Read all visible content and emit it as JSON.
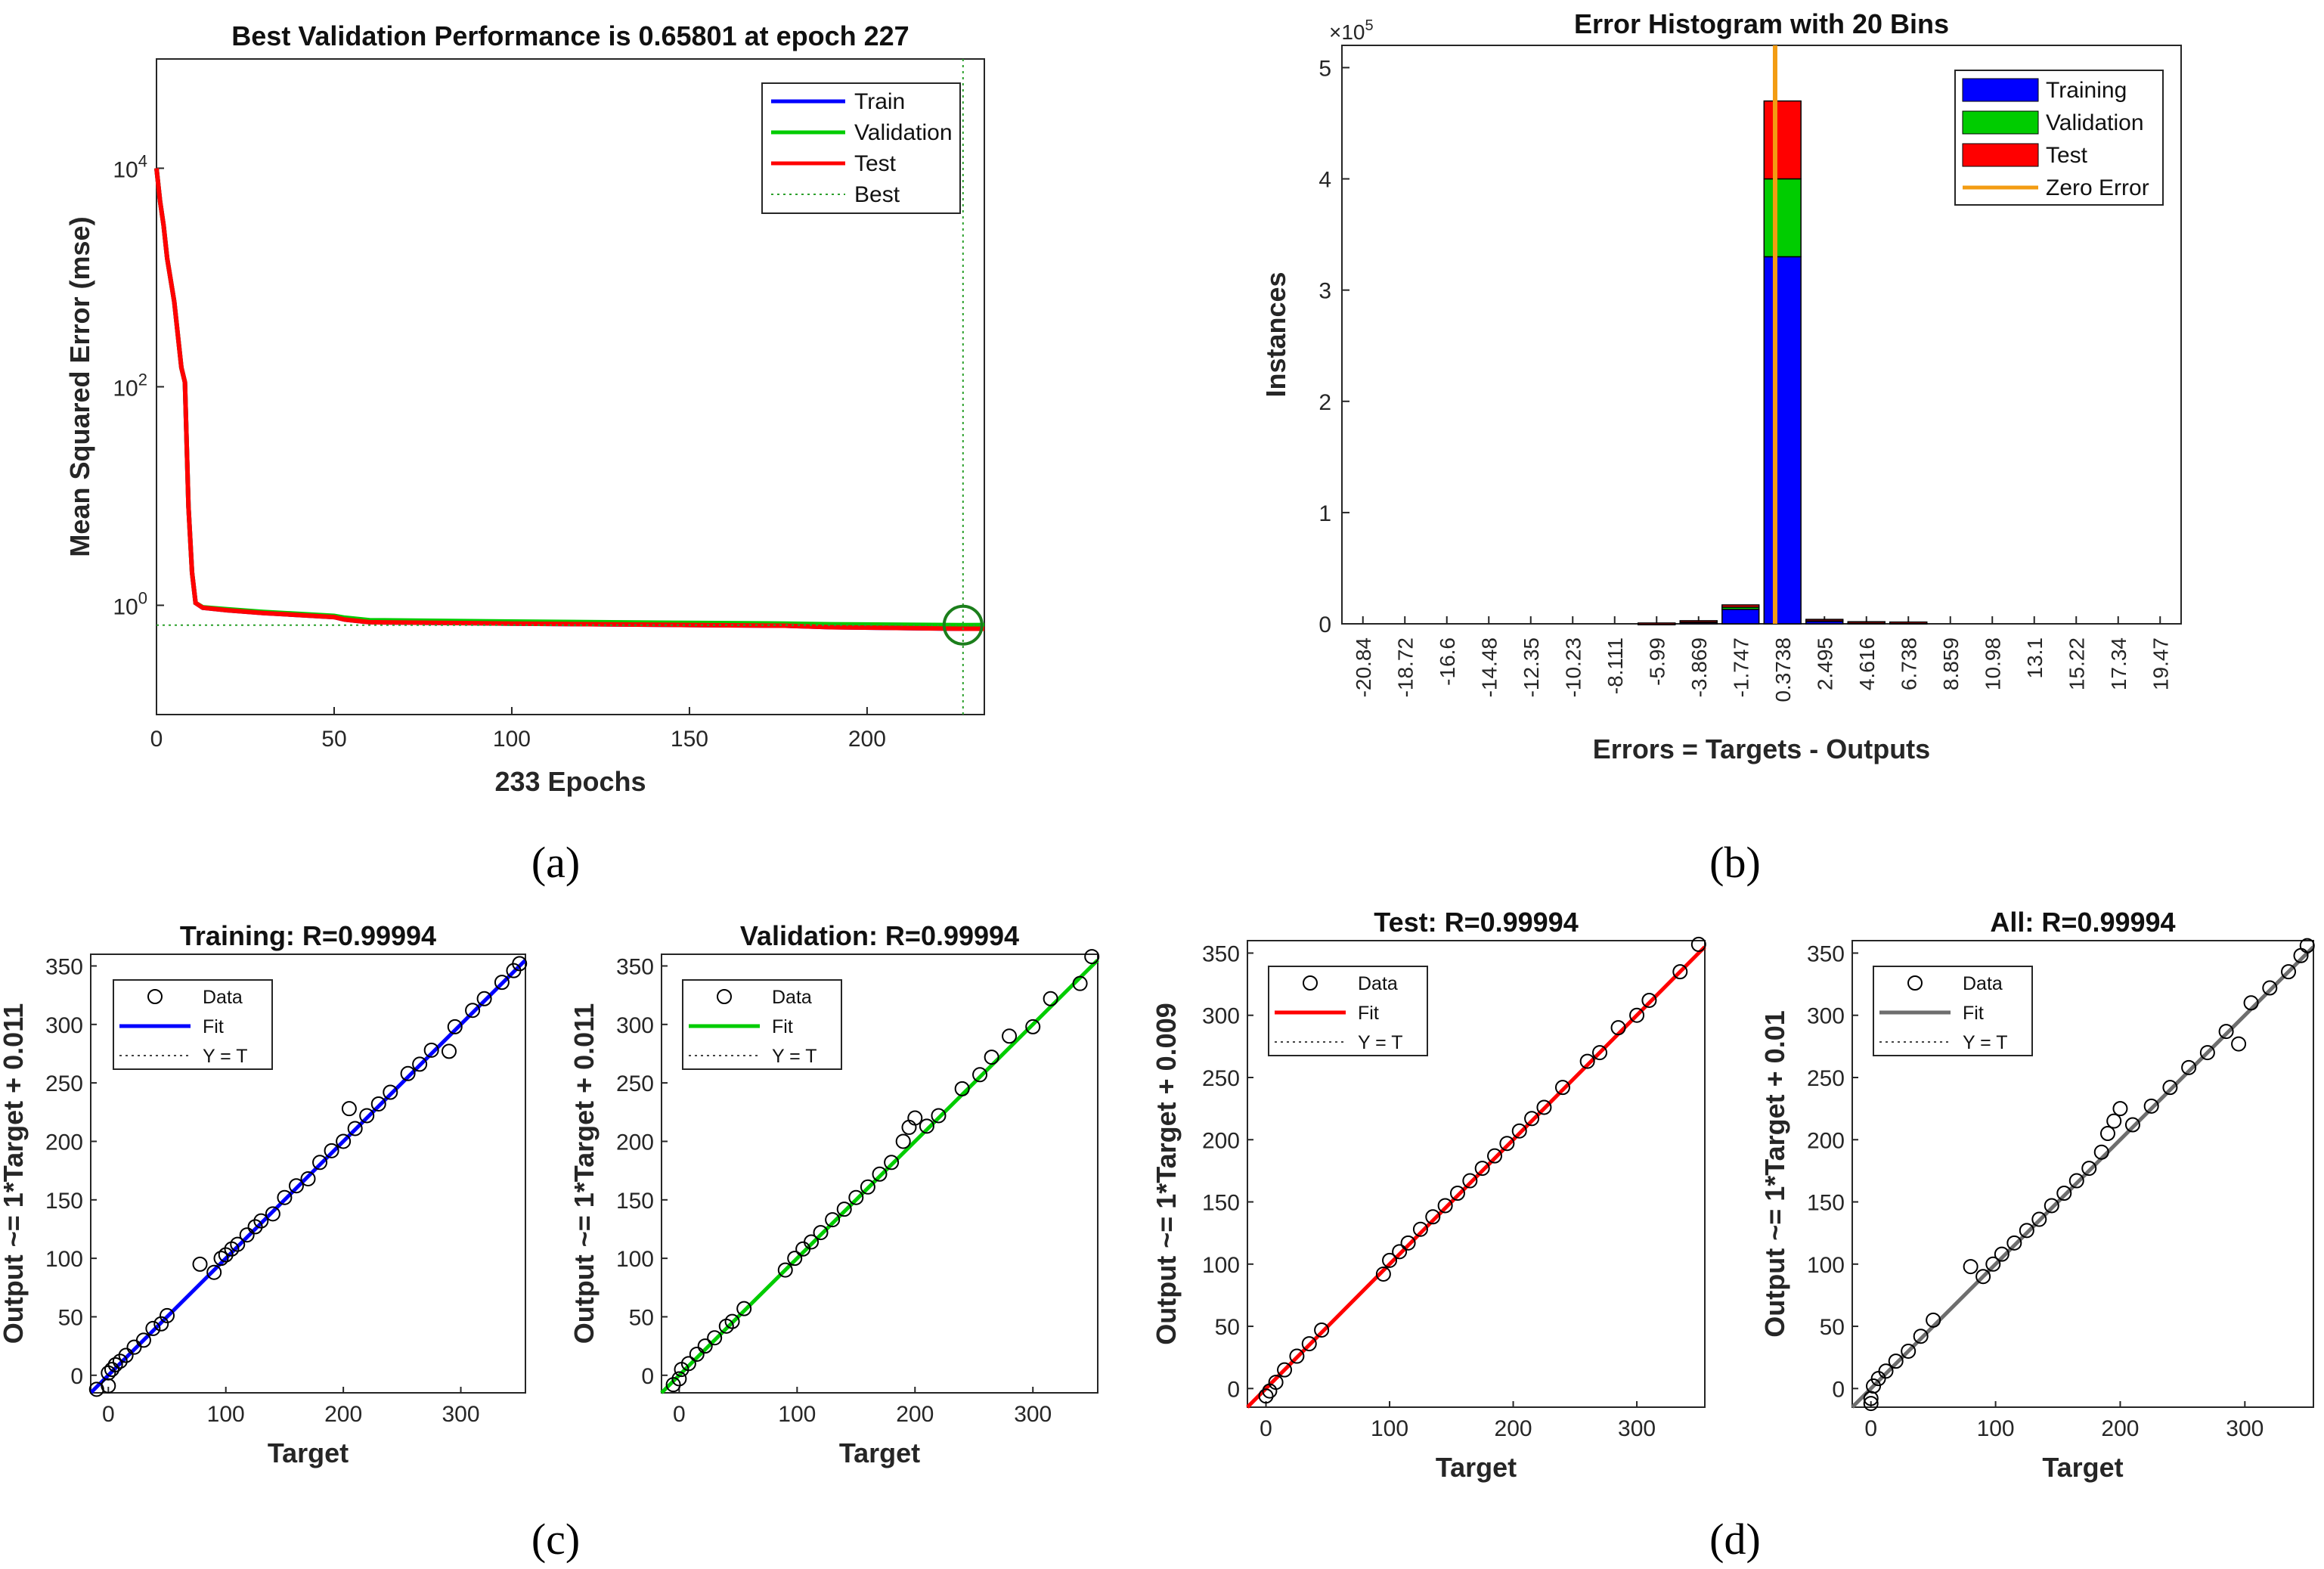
{
  "panel_labels": [
    "(a)",
    "(b)",
    "(c)",
    "(d)"
  ],
  "colors": {
    "train": "#0000ff",
    "validation": "#00cc00",
    "test": "#ff0000",
    "all": "#6e6e6e",
    "zero_error": "#f39c12",
    "best": "#2ca02c",
    "axis": "#262626"
  },
  "chart_data": [
    {
      "id": "perf",
      "type": "line",
      "title": "Best Validation Performance is 0.65801 at epoch 227",
      "xlabel": "233 Epochs",
      "ylabel": "Mean Squared Error  (mse)",
      "yscale": "log",
      "xlim": [
        0,
        233
      ],
      "ylim": [
        0.1,
        100000
      ],
      "xticks": [
        0,
        50,
        100,
        150,
        200
      ],
      "yticks": [
        {
          "v": 1,
          "mant": "10",
          "exp": "0"
        },
        {
          "v": 100,
          "mant": "10",
          "exp": "2"
        },
        {
          "v": 10000,
          "mant": "10",
          "exp": "4"
        }
      ],
      "legend": [
        "Train",
        "Validation",
        "Test",
        "Best"
      ],
      "best": {
        "epoch": 227,
        "value": 0.65801
      },
      "series": [
        {
          "name": "Train",
          "points": [
            [
              0,
              10000
            ],
            [
              1,
              5000
            ],
            [
              2,
              3000
            ],
            [
              3,
              1500
            ],
            [
              5,
              600
            ],
            [
              7,
              150
            ],
            [
              8,
              110
            ],
            [
              9,
              8
            ],
            [
              10,
              2
            ],
            [
              11,
              1.05
            ],
            [
              13,
              0.95
            ],
            [
              20,
              0.9
            ],
            [
              30,
              0.85
            ],
            [
              50,
              0.78
            ],
            [
              53,
              0.74
            ],
            [
              60,
              0.7
            ],
            [
              100,
              0.68
            ],
            [
              150,
              0.66
            ],
            [
              177,
              0.65
            ],
            [
              190,
              0.63
            ],
            [
              227,
              0.61
            ],
            [
              233,
              0.61
            ]
          ]
        },
        {
          "name": "Validation",
          "points": [
            [
              0,
              10000
            ],
            [
              1,
              5000
            ],
            [
              2,
              3000
            ],
            [
              3,
              1500
            ],
            [
              5,
              600
            ],
            [
              7,
              150
            ],
            [
              8,
              110
            ],
            [
              9,
              8
            ],
            [
              10,
              2
            ],
            [
              11,
              1.05
            ],
            [
              13,
              0.96
            ],
            [
              20,
              0.92
            ],
            [
              30,
              0.87
            ],
            [
              50,
              0.8
            ],
            [
              53,
              0.77
            ],
            [
              60,
              0.73
            ],
            [
              100,
              0.71
            ],
            [
              150,
              0.69
            ],
            [
              177,
              0.68
            ],
            [
              190,
              0.67
            ],
            [
              227,
              0.65801
            ],
            [
              233,
              0.66
            ]
          ]
        },
        {
          "name": "Test",
          "points": [
            [
              0,
              10000
            ],
            [
              1,
              5000
            ],
            [
              2,
              3000
            ],
            [
              3,
              1500
            ],
            [
              5,
              600
            ],
            [
              7,
              150
            ],
            [
              8,
              110
            ],
            [
              9,
              8
            ],
            [
              10,
              2
            ],
            [
              11,
              1.05
            ],
            [
              13,
              0.95
            ],
            [
              20,
              0.9
            ],
            [
              30,
              0.85
            ],
            [
              50,
              0.78
            ],
            [
              53,
              0.74
            ],
            [
              60,
              0.7
            ],
            [
              100,
              0.68
            ],
            [
              150,
              0.66
            ],
            [
              177,
              0.65
            ],
            [
              190,
              0.63
            ],
            [
              227,
              0.61
            ],
            [
              233,
              0.61
            ]
          ]
        }
      ]
    },
    {
      "id": "hist",
      "type": "bar",
      "title": "Error Histogram with 20 Bins",
      "xlabel": "Errors = Targets - Outputs",
      "ylabel": "Instances",
      "y_multiplier": "×10",
      "y_multiplier_exp": "5",
      "ylim": [
        0,
        5.2
      ],
      "yticks": [
        0,
        1,
        2,
        3,
        4,
        5
      ],
      "categories": [
        "-20.84",
        "-18.72",
        "-16.6",
        "-14.48",
        "-12.35",
        "-10.23",
        "-8.111",
        "-5.99",
        "-3.869",
        "-1.747",
        "0.3738",
        "2.495",
        "4.616",
        "6.738",
        "8.859",
        "10.98",
        "13.1",
        "15.22",
        "17.34",
        "19.47"
      ],
      "series": [
        {
          "name": "Training",
          "values": [
            0,
            0,
            0,
            0,
            0,
            0,
            0,
            0.005,
            0.02,
            0.13,
            3.3,
            0.03,
            0.015,
            0.012,
            0,
            0,
            0,
            0,
            0,
            0
          ]
        },
        {
          "name": "Validation",
          "values": [
            0,
            0,
            0,
            0,
            0,
            0,
            0,
            0.001,
            0.004,
            0.02,
            0.7,
            0.005,
            0.002,
            0.002,
            0,
            0,
            0,
            0,
            0,
            0
          ]
        },
        {
          "name": "Test",
          "values": [
            0,
            0,
            0,
            0,
            0,
            0,
            0,
            0.001,
            0.004,
            0.02,
            0.7,
            0.005,
            0.002,
            0.002,
            0,
            0,
            0,
            0,
            0,
            0
          ]
        }
      ],
      "zero_error": 0,
      "legend": [
        "Training",
        "Validation",
        "Test",
        "Zero Error"
      ]
    },
    {
      "id": "r_train",
      "type": "scatter",
      "title": "Training: R=0.99994",
      "xlabel": "Target",
      "ylabel": "Output ~= 1*Target + 0.011",
      "xlim": [
        -15,
        355
      ],
      "ylim": [
        -15,
        360
      ],
      "xticks": [
        0,
        100,
        200,
        300
      ],
      "yticks": [
        0,
        50,
        100,
        150,
        200,
        250,
        300,
        350
      ],
      "fit": {
        "slope": 1,
        "intercept": 0.011
      },
      "fit_color_key": "train",
      "legend": [
        "Data",
        "Fit",
        "Y = T"
      ]
    },
    {
      "id": "r_val",
      "type": "scatter",
      "title": "Validation: R=0.99994",
      "xlabel": "Target",
      "ylabel": "Output ~= 1*Target + 0.011",
      "xlim": [
        -15,
        355
      ],
      "ylim": [
        -15,
        360
      ],
      "xticks": [
        0,
        100,
        200,
        300
      ],
      "yticks": [
        0,
        50,
        100,
        150,
        200,
        250,
        300,
        350
      ],
      "fit": {
        "slope": 1,
        "intercept": 0.011
      },
      "fit_color_key": "validation",
      "legend": [
        "Data",
        "Fit",
        "Y = T"
      ]
    },
    {
      "id": "r_test",
      "type": "scatter",
      "title": "Test: R=0.99994",
      "xlabel": "Target",
      "ylabel": "Output ~= 1*Target + 0.009",
      "xlim": [
        -15,
        355
      ],
      "ylim": [
        -15,
        360
      ],
      "xticks": [
        0,
        100,
        200,
        300
      ],
      "yticks": [
        0,
        50,
        100,
        150,
        200,
        250,
        300,
        350
      ],
      "fit": {
        "slope": 1,
        "intercept": 0.009
      },
      "fit_color_key": "test",
      "legend": [
        "Data",
        "Fit",
        "Y = T"
      ]
    },
    {
      "id": "r_all",
      "type": "scatter",
      "title": "All: R=0.99994",
      "xlabel": "Target",
      "ylabel": "Output ~= 1*Target + 0.01",
      "xlim": [
        -15,
        355
      ],
      "ylim": [
        -15,
        360
      ],
      "xticks": [
        0,
        100,
        200,
        300
      ],
      "yticks": [
        0,
        50,
        100,
        150,
        200,
        250,
        300,
        350
      ],
      "fit": {
        "slope": 1,
        "intercept": 0.01
      },
      "fit_color_key": "all",
      "legend": [
        "Data",
        "Fit",
        "Y = T"
      ]
    }
  ],
  "scatter_points": {
    "r_train": [
      [
        -10,
        -12
      ],
      [
        0,
        -9
      ],
      [
        0,
        2
      ],
      [
        3,
        5
      ],
      [
        6,
        9
      ],
      [
        10,
        12
      ],
      [
        15,
        17
      ],
      [
        22,
        24
      ],
      [
        30,
        30
      ],
      [
        38,
        40
      ],
      [
        45,
        44
      ],
      [
        50,
        51
      ],
      [
        78,
        95
      ],
      [
        90,
        88
      ],
      [
        96,
        100
      ],
      [
        100,
        103
      ],
      [
        105,
        108
      ],
      [
        110,
        112
      ],
      [
        118,
        120
      ],
      [
        125,
        127
      ],
      [
        130,
        132
      ],
      [
        140,
        138
      ],
      [
        150,
        152
      ],
      [
        160,
        162
      ],
      [
        170,
        168
      ],
      [
        180,
        182
      ],
      [
        190,
        192
      ],
      [
        200,
        200
      ],
      [
        205,
        228
      ],
      [
        210,
        211
      ],
      [
        220,
        222
      ],
      [
        230,
        232
      ],
      [
        240,
        242
      ],
      [
        255,
        258
      ],
      [
        265,
        266
      ],
      [
        275,
        278
      ],
      [
        290,
        277
      ],
      [
        295,
        298
      ],
      [
        310,
        312
      ],
      [
        320,
        322
      ],
      [
        335,
        336
      ],
      [
        345,
        346
      ],
      [
        350,
        352
      ]
    ],
    "r_val": [
      [
        -5,
        -8
      ],
      [
        0,
        -3
      ],
      [
        2,
        5
      ],
      [
        8,
        10
      ],
      [
        15,
        18
      ],
      [
        22,
        25
      ],
      [
        30,
        32
      ],
      [
        40,
        42
      ],
      [
        45,
        46
      ],
      [
        55,
        57
      ],
      [
        90,
        90
      ],
      [
        98,
        100
      ],
      [
        105,
        108
      ],
      [
        112,
        114
      ],
      [
        120,
        122
      ],
      [
        130,
        133
      ],
      [
        140,
        142
      ],
      [
        150,
        152
      ],
      [
        160,
        161
      ],
      [
        170,
        172
      ],
      [
        180,
        182
      ],
      [
        190,
        200
      ],
      [
        195,
        212
      ],
      [
        200,
        220
      ],
      [
        210,
        213
      ],
      [
        220,
        222
      ],
      [
        240,
        245
      ],
      [
        255,
        257
      ],
      [
        265,
        272
      ],
      [
        280,
        290
      ],
      [
        300,
        298
      ],
      [
        315,
        322
      ],
      [
        340,
        335
      ],
      [
        350,
        358
      ]
    ],
    "r_test": [
      [
        0,
        -6
      ],
      [
        3,
        -2
      ],
      [
        8,
        5
      ],
      [
        15,
        15
      ],
      [
        25,
        26
      ],
      [
        35,
        36
      ],
      [
        45,
        47
      ],
      [
        95,
        92
      ],
      [
        100,
        103
      ],
      [
        108,
        110
      ],
      [
        115,
        117
      ],
      [
        125,
        128
      ],
      [
        135,
        138
      ],
      [
        145,
        147
      ],
      [
        155,
        157
      ],
      [
        165,
        167
      ],
      [
        175,
        177
      ],
      [
        185,
        187
      ],
      [
        195,
        197
      ],
      [
        205,
        207
      ],
      [
        215,
        217
      ],
      [
        225,
        226
      ],
      [
        240,
        242
      ],
      [
        260,
        263
      ],
      [
        270,
        270
      ],
      [
        285,
        290
      ],
      [
        300,
        300
      ],
      [
        310,
        312
      ],
      [
        335,
        335
      ],
      [
        350,
        357
      ]
    ],
    "r_all": [
      [
        0,
        -12
      ],
      [
        0,
        -8
      ],
      [
        2,
        2
      ],
      [
        6,
        8
      ],
      [
        12,
        14
      ],
      [
        20,
        22
      ],
      [
        30,
        30
      ],
      [
        40,
        42
      ],
      [
        50,
        55
      ],
      [
        80,
        98
      ],
      [
        90,
        90
      ],
      [
        98,
        100
      ],
      [
        105,
        108
      ],
      [
        115,
        117
      ],
      [
        125,
        127
      ],
      [
        135,
        136
      ],
      [
        145,
        147
      ],
      [
        155,
        157
      ],
      [
        165,
        167
      ],
      [
        175,
        177
      ],
      [
        185,
        190
      ],
      [
        190,
        205
      ],
      [
        195,
        215
      ],
      [
        200,
        225
      ],
      [
        210,
        212
      ],
      [
        225,
        227
      ],
      [
        240,
        242
      ],
      [
        255,
        258
      ],
      [
        270,
        270
      ],
      [
        285,
        287
      ],
      [
        295,
        277
      ],
      [
        305,
        310
      ],
      [
        320,
        322
      ],
      [
        335,
        335
      ],
      [
        345,
        348
      ],
      [
        350,
        356
      ]
    ]
  }
}
